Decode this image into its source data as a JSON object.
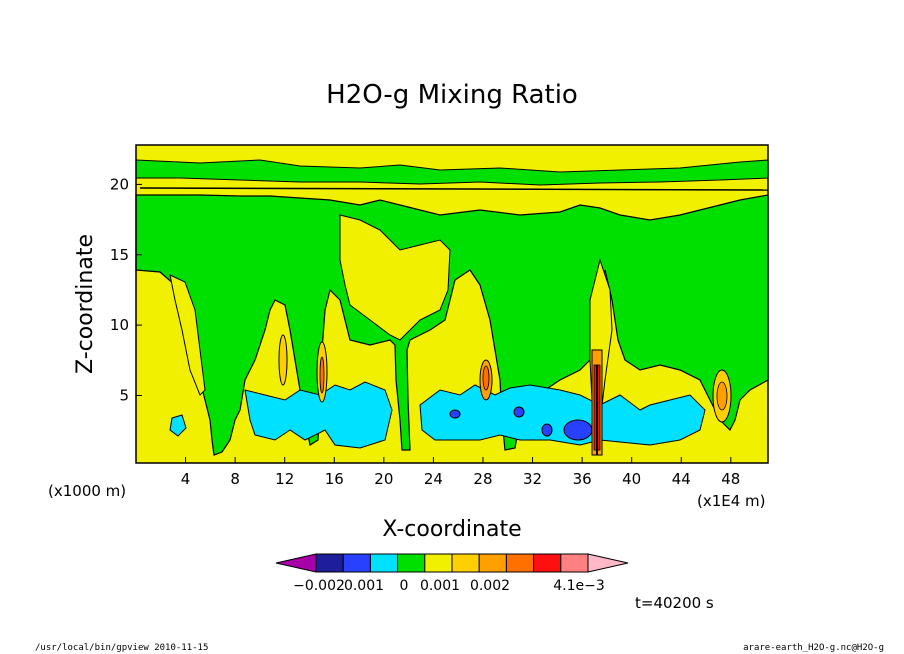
{
  "chart_data": {
    "type": "heatmap",
    "title": "H2O-g Mixing Ratio",
    "xlabel": "X-coordinate",
    "ylabel": "Z-coordinate",
    "x_scale_label": "(x1000 m)",
    "x_unit_label": "(x1E4 m)",
    "xlim": [
      0,
      51
    ],
    "ylim": [
      0.2,
      22.8
    ],
    "x_ticks": [
      4,
      8,
      12,
      16,
      20,
      24,
      28,
      32,
      36,
      40,
      44,
      48
    ],
    "y_ticks": [
      5,
      10,
      15,
      20
    ],
    "colorbar": {
      "colors": [
        "#a800a8",
        "#1e1e9c",
        "#2840ff",
        "#00e0ff",
        "#00e000",
        "#f0f000",
        "#ffd000",
        "#ffa000",
        "#ff7000",
        "#ff1010",
        "#ff8080",
        "#ffb8c8"
      ],
      "tick_labels": [
        "−0.002",
        "0.001",
        "0",
        "0.001",
        "0.002",
        "4.1e−3"
      ]
    },
    "regions": [
      {
        "level": 0.0005,
        "desc": "yellow background"
      },
      {
        "level": 0.0,
        "desc": "green main band"
      },
      {
        "level": -0.001,
        "desc": "cyan low-level bands"
      },
      {
        "level": -0.0015,
        "desc": "blue cores"
      },
      {
        "level": 0.004,
        "desc": "red core near x=37"
      }
    ],
    "time_label": "t=40200 s"
  },
  "footer": {
    "left": "/usr/local/bin/gpview  2010-11-15",
    "right": "arare-earth_H2O-g.nc@H2O-g"
  }
}
